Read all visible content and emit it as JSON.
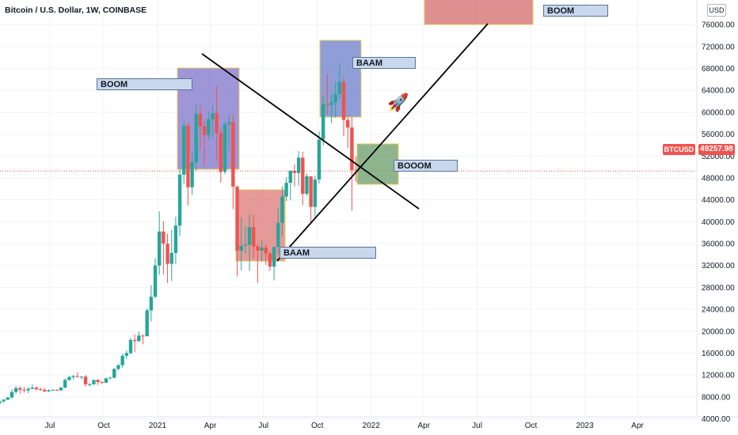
{
  "header": {
    "title": "Bitcoin / U.S. Dollar, 1W, COINBASE",
    "price_unit": "USD"
  },
  "last_price": {
    "symbol": "BTCUSD",
    "value": "49257.98",
    "color": "#ef5350"
  },
  "annotations": {
    "note1": "BOOM",
    "note2": "BAAM",
    "note3": "BAAM",
    "note4": "BOOOM",
    "note5": "BOOM",
    "rocket_icon": "rocket-icon"
  },
  "chart_data": {
    "type": "candlestick",
    "interval": "1W",
    "colors": {
      "up": "#26a69a",
      "down": "#ef5350"
    },
    "yaxis": {
      "ticks": [
        4000,
        8000,
        12000,
        16000,
        20000,
        24000,
        28000,
        32000,
        36000,
        40000,
        44000,
        48000,
        52000,
        56000,
        60000,
        64000,
        68000,
        72000,
        76000
      ],
      "tick_labels": [
        "4000.00",
        "8000.00",
        "12000.00",
        "16000.00",
        "20000.00",
        "24000.00",
        "28000.00",
        "32000.00",
        "36000.00",
        "40000.00",
        "44000.00",
        "48000.00",
        "52000.00",
        "56000.00",
        "60000.00",
        "64000.00",
        "68000.00",
        "72000.00",
        "76000.00"
      ]
    },
    "xaxis": {
      "ticks": [
        {
          "date": "2020-07-01",
          "label": "Jul"
        },
        {
          "date": "2020-10-01",
          "label": "Oct"
        },
        {
          "date": "2021-01-01",
          "label": "2021"
        },
        {
          "date": "2021-04-01",
          "label": "Apr"
        },
        {
          "date": "2021-07-01",
          "label": "Jul"
        },
        {
          "date": "2021-10-01",
          "label": "Oct"
        },
        {
          "date": "2022-01-01",
          "label": "2022"
        },
        {
          "date": "2022-04-01",
          "label": "Apr"
        },
        {
          "date": "2022-07-01",
          "label": "Jul"
        },
        {
          "date": "2022-10-01",
          "label": "Oct"
        },
        {
          "date": "2023-01-01",
          "label": "2023"
        },
        {
          "date": "2023-04-01",
          "label": "Apr"
        }
      ]
    },
    "candles": [
      {
        "date": "2020-04-06",
        "o": 6800,
        "h": 7300,
        "l": 6600,
        "c": 7200
      },
      {
        "date": "2020-04-13",
        "o": 7200,
        "h": 7600,
        "l": 6900,
        "c": 7500
      },
      {
        "date": "2020-04-20",
        "o": 7500,
        "h": 8000,
        "l": 7400,
        "c": 7900
      },
      {
        "date": "2020-04-27",
        "o": 7900,
        "h": 9400,
        "l": 7700,
        "c": 8900
      },
      {
        "date": "2020-05-04",
        "o": 8900,
        "h": 10000,
        "l": 8600,
        "c": 9600
      },
      {
        "date": "2020-05-11",
        "o": 9600,
        "h": 9900,
        "l": 8600,
        "c": 9300
      },
      {
        "date": "2020-05-18",
        "o": 9300,
        "h": 9800,
        "l": 8800,
        "c": 9200
      },
      {
        "date": "2020-05-25",
        "o": 9200,
        "h": 9700,
        "l": 8700,
        "c": 9500
      },
      {
        "date": "2020-06-01",
        "o": 9500,
        "h": 10300,
        "l": 9400,
        "c": 9700
      },
      {
        "date": "2020-06-08",
        "o": 9700,
        "h": 9900,
        "l": 9200,
        "c": 9400
      },
      {
        "date": "2020-06-15",
        "o": 9400,
        "h": 9700,
        "l": 9100,
        "c": 9300
      },
      {
        "date": "2020-06-22",
        "o": 9300,
        "h": 9600,
        "l": 8900,
        "c": 9000
      },
      {
        "date": "2020-06-29",
        "o": 9000,
        "h": 9400,
        "l": 8900,
        "c": 9200
      },
      {
        "date": "2020-07-06",
        "o": 9200,
        "h": 9400,
        "l": 9100,
        "c": 9300
      },
      {
        "date": "2020-07-13",
        "o": 9300,
        "h": 9400,
        "l": 9100,
        "c": 9200
      },
      {
        "date": "2020-07-20",
        "o": 9200,
        "h": 9800,
        "l": 9100,
        "c": 9700
      },
      {
        "date": "2020-07-27",
        "o": 9700,
        "h": 11400,
        "l": 9600,
        "c": 11100
      },
      {
        "date": "2020-08-03",
        "o": 11100,
        "h": 11900,
        "l": 10900,
        "c": 11600
      },
      {
        "date": "2020-08-10",
        "o": 11600,
        "h": 12000,
        "l": 11200,
        "c": 11800
      },
      {
        "date": "2020-08-17",
        "o": 11800,
        "h": 12500,
        "l": 11500,
        "c": 11700
      },
      {
        "date": "2020-08-24",
        "o": 11700,
        "h": 11800,
        "l": 11200,
        "c": 11700
      },
      {
        "date": "2020-08-31",
        "o": 11700,
        "h": 12000,
        "l": 9900,
        "c": 10300
      },
      {
        "date": "2020-09-07",
        "o": 10300,
        "h": 10600,
        "l": 9900,
        "c": 10300
      },
      {
        "date": "2020-09-14",
        "o": 10300,
        "h": 11100,
        "l": 10200,
        "c": 11100
      },
      {
        "date": "2020-09-21",
        "o": 11100,
        "h": 11200,
        "l": 10200,
        "c": 10700
      },
      {
        "date": "2020-09-28",
        "o": 10700,
        "h": 10900,
        "l": 10400,
        "c": 10600
      },
      {
        "date": "2020-10-05",
        "o": 10600,
        "h": 11500,
        "l": 10500,
        "c": 11400
      },
      {
        "date": "2020-10-12",
        "o": 11400,
        "h": 11700,
        "l": 11200,
        "c": 11500
      },
      {
        "date": "2020-10-19",
        "o": 11500,
        "h": 13300,
        "l": 11400,
        "c": 13100
      },
      {
        "date": "2020-10-26",
        "o": 13100,
        "h": 14000,
        "l": 12900,
        "c": 13800
      },
      {
        "date": "2020-11-02",
        "o": 13800,
        "h": 15900,
        "l": 13300,
        "c": 15500
      },
      {
        "date": "2020-11-09",
        "o": 15500,
        "h": 16500,
        "l": 14900,
        "c": 16000
      },
      {
        "date": "2020-11-16",
        "o": 16000,
        "h": 18800,
        "l": 15800,
        "c": 18400
      },
      {
        "date": "2020-11-23",
        "o": 18400,
        "h": 19400,
        "l": 16200,
        "c": 18200
      },
      {
        "date": "2020-11-30",
        "o": 18200,
        "h": 19900,
        "l": 18000,
        "c": 19200
      },
      {
        "date": "2020-12-07",
        "o": 19200,
        "h": 19400,
        "l": 17600,
        "c": 19100
      },
      {
        "date": "2020-12-14",
        "o": 19100,
        "h": 24200,
        "l": 19000,
        "c": 23800
      },
      {
        "date": "2020-12-21",
        "o": 23800,
        "h": 28400,
        "l": 21800,
        "c": 26300
      },
      {
        "date": "2020-12-28",
        "o": 26300,
        "h": 33300,
        "l": 26000,
        "c": 32000
      },
      {
        "date": "2021-01-04",
        "o": 32000,
        "h": 41900,
        "l": 30300,
        "c": 38200
      },
      {
        "date": "2021-01-11",
        "o": 38200,
        "h": 40100,
        "l": 30400,
        "c": 36000
      },
      {
        "date": "2021-01-18",
        "o": 36000,
        "h": 37800,
        "l": 28800,
        "c": 32300
      },
      {
        "date": "2021-01-25",
        "o": 32300,
        "h": 38500,
        "l": 29200,
        "c": 34300
      },
      {
        "date": "2021-02-01",
        "o": 34300,
        "h": 40900,
        "l": 32300,
        "c": 39300
      },
      {
        "date": "2021-02-08",
        "o": 39300,
        "h": 49700,
        "l": 37400,
        "c": 48600
      },
      {
        "date": "2021-02-15",
        "o": 48600,
        "h": 58300,
        "l": 47000,
        "c": 57500
      },
      {
        "date": "2021-02-22",
        "o": 57500,
        "h": 58000,
        "l": 43000,
        "c": 46300
      },
      {
        "date": "2021-03-01",
        "o": 46300,
        "h": 52600,
        "l": 44900,
        "c": 50900
      },
      {
        "date": "2021-03-08",
        "o": 50900,
        "h": 61700,
        "l": 49300,
        "c": 59700
      },
      {
        "date": "2021-03-15",
        "o": 59700,
        "h": 61200,
        "l": 53200,
        "c": 57400
      },
      {
        "date": "2021-03-22",
        "o": 57400,
        "h": 58400,
        "l": 50300,
        "c": 55800
      },
      {
        "date": "2021-03-29",
        "o": 55800,
        "h": 60100,
        "l": 55000,
        "c": 58700
      },
      {
        "date": "2021-04-05",
        "o": 58700,
        "h": 61200,
        "l": 55400,
        "c": 59800
      },
      {
        "date": "2021-04-12",
        "o": 59800,
        "h": 64800,
        "l": 51000,
        "c": 56200
      },
      {
        "date": "2021-04-19",
        "o": 56200,
        "h": 57000,
        "l": 47100,
        "c": 49100
      },
      {
        "date": "2021-04-26",
        "o": 49100,
        "h": 58400,
        "l": 48700,
        "c": 57800
      },
      {
        "date": "2021-05-03",
        "o": 57800,
        "h": 59500,
        "l": 53000,
        "c": 58200
      },
      {
        "date": "2021-05-10",
        "o": 58200,
        "h": 59600,
        "l": 42300,
        "c": 46400
      },
      {
        "date": "2021-05-17",
        "o": 46400,
        "h": 46600,
        "l": 30000,
        "c": 34700
      },
      {
        "date": "2021-05-24",
        "o": 34700,
        "h": 40800,
        "l": 31100,
        "c": 35600
      },
      {
        "date": "2021-05-31",
        "o": 35600,
        "h": 39200,
        "l": 34200,
        "c": 35800
      },
      {
        "date": "2021-06-07",
        "o": 35800,
        "h": 41300,
        "l": 31000,
        "c": 39000
      },
      {
        "date": "2021-06-14",
        "o": 39000,
        "h": 41300,
        "l": 33300,
        "c": 35500
      },
      {
        "date": "2021-06-21",
        "o": 35500,
        "h": 36000,
        "l": 28800,
        "c": 34700
      },
      {
        "date": "2021-06-28",
        "o": 34700,
        "h": 36600,
        "l": 32700,
        "c": 35300
      },
      {
        "date": "2021-07-05",
        "o": 35300,
        "h": 35900,
        "l": 32100,
        "c": 34200
      },
      {
        "date": "2021-07-12",
        "o": 34200,
        "h": 34600,
        "l": 31000,
        "c": 31800
      },
      {
        "date": "2021-07-19",
        "o": 31800,
        "h": 35400,
        "l": 29300,
        "c": 35400
      },
      {
        "date": "2021-07-26",
        "o": 35400,
        "h": 42600,
        "l": 34000,
        "c": 39800
      },
      {
        "date": "2021-08-02",
        "o": 39800,
        "h": 46400,
        "l": 37300,
        "c": 44600
      },
      {
        "date": "2021-08-09",
        "o": 44600,
        "h": 48100,
        "l": 43800,
        "c": 47100
      },
      {
        "date": "2021-08-16",
        "o": 47100,
        "h": 49400,
        "l": 43900,
        "c": 49300
      },
      {
        "date": "2021-08-23",
        "o": 49300,
        "h": 50500,
        "l": 46400,
        "c": 48900
      },
      {
        "date": "2021-08-30",
        "o": 48900,
        "h": 52900,
        "l": 46600,
        "c": 51700
      },
      {
        "date": "2021-09-06",
        "o": 51700,
        "h": 52800,
        "l": 43000,
        "c": 45100
      },
      {
        "date": "2021-09-13",
        "o": 45100,
        "h": 48800,
        "l": 44700,
        "c": 48300
      },
      {
        "date": "2021-09-20",
        "o": 48300,
        "h": 48300,
        "l": 39600,
        "c": 42700
      },
      {
        "date": "2021-09-27",
        "o": 42700,
        "h": 48400,
        "l": 40900,
        "c": 47700
      },
      {
        "date": "2021-10-04",
        "o": 47700,
        "h": 56500,
        "l": 47000,
        "c": 55000
      },
      {
        "date": "2021-10-11",
        "o": 55000,
        "h": 62900,
        "l": 53900,
        "c": 61500
      },
      {
        "date": "2021-10-18",
        "o": 61500,
        "h": 67000,
        "l": 59600,
        "c": 61300
      },
      {
        "date": "2021-10-25",
        "o": 61300,
        "h": 63300,
        "l": 58000,
        "c": 61800
      },
      {
        "date": "2021-11-01",
        "o": 61800,
        "h": 65500,
        "l": 59000,
        "c": 63300
      },
      {
        "date": "2021-11-08",
        "o": 63300,
        "h": 69000,
        "l": 62300,
        "c": 65500
      },
      {
        "date": "2021-11-15",
        "o": 65500,
        "h": 66300,
        "l": 55600,
        "c": 58600
      },
      {
        "date": "2021-11-22",
        "o": 58600,
        "h": 59300,
        "l": 53500,
        "c": 57200
      },
      {
        "date": "2021-11-29",
        "o": 57200,
        "h": 59100,
        "l": 42000,
        "c": 49400
      },
      {
        "date": "2021-12-06",
        "o": 49400,
        "h": 51900,
        "l": 47300,
        "c": 49258
      }
    ],
    "last_price": 49257.98
  }
}
